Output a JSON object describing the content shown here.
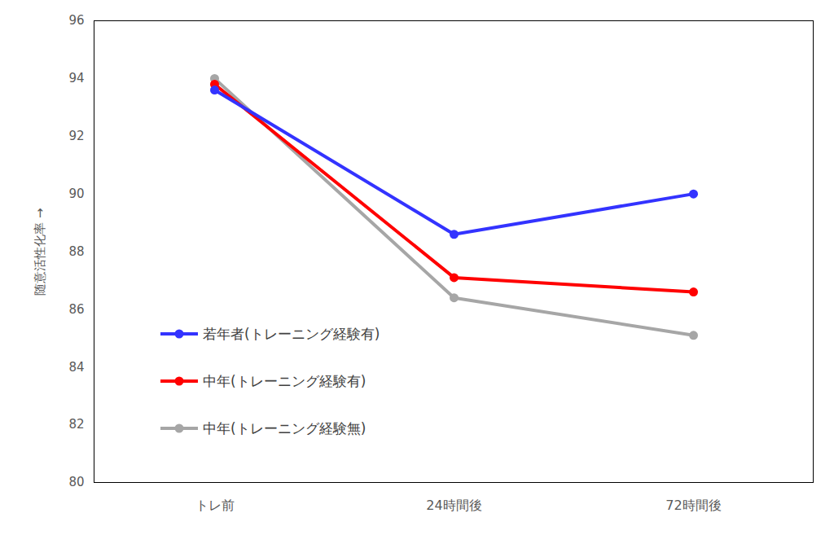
{
  "chart_data": {
    "type": "line",
    "categories": [
      "トレ前",
      "24時間後",
      "72時間後"
    ],
    "series": [
      {
        "name": "若年者(トレーニング経験有)",
        "color": "#3333ff",
        "marker": "circle",
        "values": [
          93.6,
          88.6,
          90.0
        ]
      },
      {
        "name": "中年(トレーニング経験有)",
        "color": "#ff0000",
        "marker": "circle",
        "values": [
          93.8,
          87.1,
          86.6
        ]
      },
      {
        "name": "中年(トレーニング経験無)",
        "color": "#a6a6a6",
        "marker": "circle",
        "values": [
          94.0,
          86.4,
          85.1
        ]
      }
    ],
    "ylabel": "随意活性化率",
    "ylim": [
      80,
      96
    ],
    "yticks": [
      80,
      82,
      84,
      86,
      88,
      90,
      92,
      94,
      96
    ],
    "grid": false,
    "legend": "lower left"
  }
}
